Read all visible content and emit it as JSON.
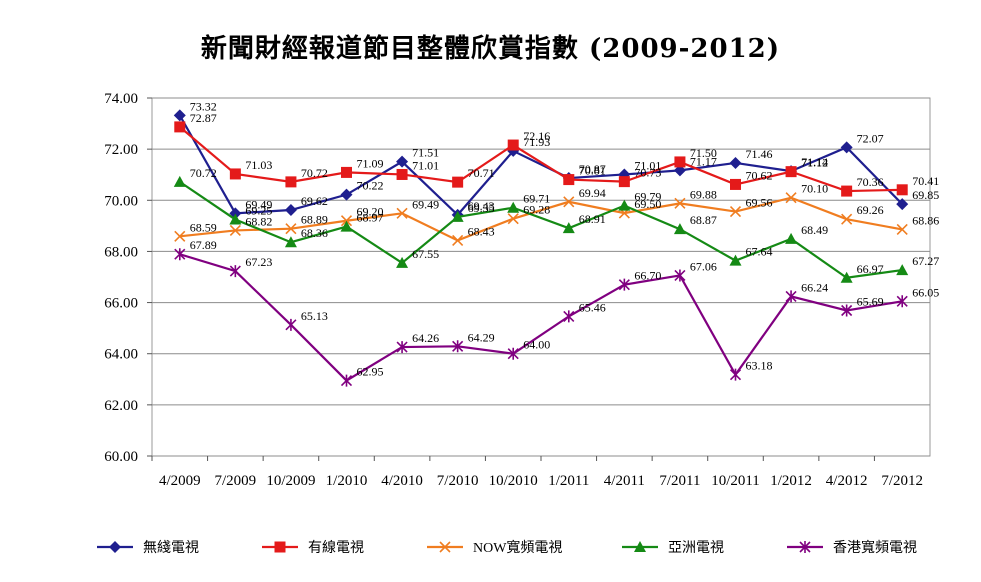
{
  "chart_data": {
    "type": "line",
    "title": "新聞財經報道節目整體欣賞指數 (2009-2012)",
    "xlabel": "",
    "ylabel": "",
    "ylim": [
      60,
      74
    ],
    "y_ticks": [
      "60.00",
      "62.00",
      "64.00",
      "66.00",
      "68.00",
      "70.00",
      "72.00",
      "74.00"
    ],
    "grid": "horizontal",
    "legend_position": "bottom",
    "categories": [
      "4/2009",
      "7/2009",
      "10/2009",
      "1/2010",
      "4/2010",
      "7/2010",
      "10/2010",
      "1/2011",
      "4/2011",
      "7/2011",
      "10/2011",
      "1/2012",
      "4/2012",
      "7/2012"
    ],
    "series": [
      {
        "name": "無綫電視",
        "color": "#1f1f8f",
        "marker": "diamond",
        "values": [
          73.32,
          69.49,
          69.62,
          70.22,
          71.51,
          69.43,
          71.93,
          70.87,
          71.01,
          71.17,
          71.46,
          71.14,
          72.07,
          69.85
        ]
      },
      {
        "name": "有線電視",
        "color": "#e41a1a",
        "marker": "square",
        "values": [
          72.87,
          71.03,
          70.72,
          71.09,
          71.01,
          70.71,
          72.16,
          70.81,
          70.73,
          71.5,
          70.62,
          71.12,
          70.36,
          70.41
        ]
      },
      {
        "name": "NOW寬頻電視",
        "color": "#f07d20",
        "marker": "x",
        "values": [
          68.59,
          68.82,
          68.89,
          69.2,
          69.49,
          68.43,
          69.28,
          69.94,
          69.5,
          69.88,
          69.56,
          70.1,
          69.26,
          68.86
        ]
      },
      {
        "name": "亞洲電視",
        "color": "#158a15",
        "marker": "triangle",
        "values": [
          70.72,
          69.25,
          68.36,
          68.97,
          67.55,
          69.35,
          69.71,
          68.91,
          69.79,
          68.87,
          67.64,
          68.49,
          66.97,
          67.27
        ]
      },
      {
        "name": "香港寬頻電視",
        "color": "#800080",
        "marker": "star",
        "values": [
          67.89,
          67.23,
          65.13,
          62.95,
          64.26,
          64.29,
          64.0,
          65.46,
          66.7,
          67.06,
          63.18,
          66.24,
          65.69,
          66.05
        ]
      }
    ]
  }
}
